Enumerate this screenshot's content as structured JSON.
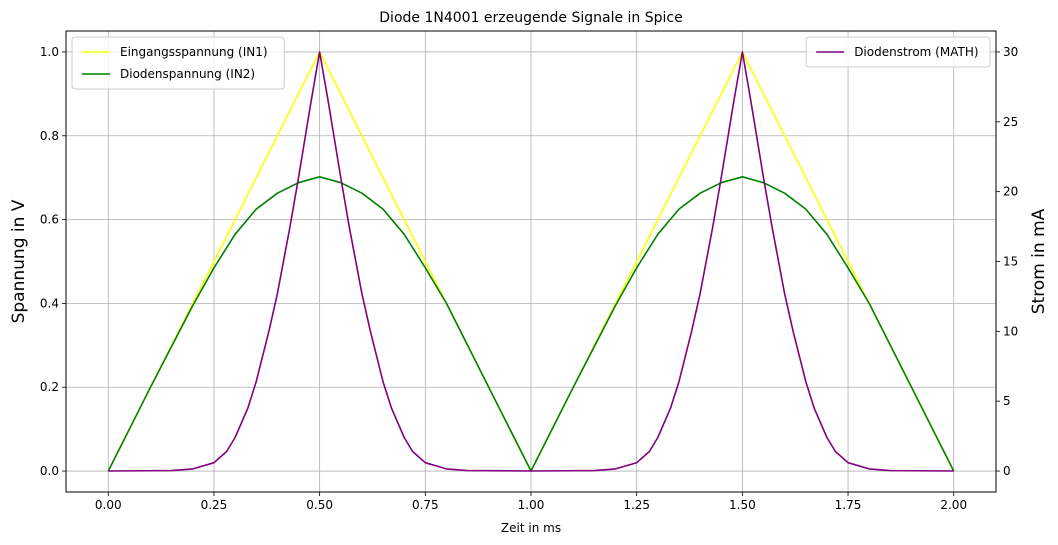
{
  "chart_data": {
    "type": "line",
    "title": "Diode 1N4001 erzeugende Signale in Spice",
    "xlabel": "Zeit in ms",
    "ylabel_left": "Spannung in V",
    "ylabel_right": "Strom in mA",
    "xlim": [
      -0.1,
      2.1
    ],
    "ylim_left": [
      -0.05,
      1.05
    ],
    "ylim_right": [
      -1.5,
      31.5
    ],
    "xticks": [
      "0.00",
      "0.25",
      "0.50",
      "0.75",
      "1.00",
      "1.25",
      "1.50",
      "1.75",
      "2.00"
    ],
    "yticks_left": [
      "0.0",
      "0.2",
      "0.4",
      "0.6",
      "0.8",
      "1.0"
    ],
    "yticks_right": [
      "0",
      "5",
      "10",
      "15",
      "20",
      "25",
      "30"
    ],
    "grid": true,
    "legend_left_placement": "upper-left",
    "legend_right_placement": "upper-right",
    "series": [
      {
        "name": "Eingangsspannung (IN1)",
        "axis": "left",
        "color": "#ffff00",
        "x": [
          0,
          0.5,
          1.0,
          1.5,
          2.0
        ],
        "y": [
          0,
          1.0,
          0,
          1.0,
          0
        ]
      },
      {
        "name": "Diodenspannung (IN2)",
        "axis": "left",
        "color": "#008000",
        "x": [
          0,
          0.1,
          0.2,
          0.25,
          0.3,
          0.35,
          0.4,
          0.45,
          0.5,
          0.55,
          0.6,
          0.65,
          0.7,
          0.75,
          0.8,
          0.9,
          1.0,
          1.1,
          1.2,
          1.25,
          1.3,
          1.35,
          1.4,
          1.45,
          1.5,
          1.55,
          1.6,
          1.65,
          1.7,
          1.75,
          1.8,
          1.9,
          2.0
        ],
        "y": [
          0,
          0.2,
          0.395,
          0.485,
          0.565,
          0.625,
          0.663,
          0.688,
          0.702,
          0.688,
          0.663,
          0.625,
          0.565,
          0.485,
          0.4,
          0.2,
          0,
          0.2,
          0.395,
          0.485,
          0.565,
          0.625,
          0.663,
          0.688,
          0.702,
          0.688,
          0.663,
          0.625,
          0.565,
          0.485,
          0.4,
          0.2,
          0
        ]
      },
      {
        "name": "Diodenstrom (MATH)",
        "axis": "right",
        "color": "#800080",
        "x": [
          0,
          0.15,
          0.2,
          0.25,
          0.28,
          0.3,
          0.33,
          0.35,
          0.38,
          0.4,
          0.43,
          0.45,
          0.48,
          0.5,
          0.52,
          0.55,
          0.57,
          0.6,
          0.62,
          0.65,
          0.67,
          0.7,
          0.72,
          0.75,
          0.8,
          0.85,
          1.0,
          1.15,
          1.2,
          1.25,
          1.28,
          1.3,
          1.33,
          1.35,
          1.38,
          1.4,
          1.43,
          1.45,
          1.48,
          1.5,
          1.52,
          1.55,
          1.57,
          1.6,
          1.62,
          1.65,
          1.67,
          1.7,
          1.72,
          1.75,
          1.8,
          1.85,
          2.0
        ],
        "y": [
          0,
          0.03,
          0.15,
          0.6,
          1.4,
          2.4,
          4.5,
          6.4,
          10.0,
          12.7,
          17.5,
          21.0,
          26.5,
          30.0,
          26.5,
          21.0,
          17.5,
          12.7,
          10.0,
          6.4,
          4.5,
          2.4,
          1.4,
          0.6,
          0.15,
          0.03,
          0,
          0.03,
          0.15,
          0.6,
          1.4,
          2.4,
          4.5,
          6.4,
          10.0,
          12.7,
          17.5,
          21.0,
          26.5,
          30.0,
          26.5,
          21.0,
          17.5,
          12.7,
          10.0,
          6.4,
          4.5,
          2.4,
          1.4,
          0.6,
          0.15,
          0.03,
          0
        ]
      }
    ]
  }
}
